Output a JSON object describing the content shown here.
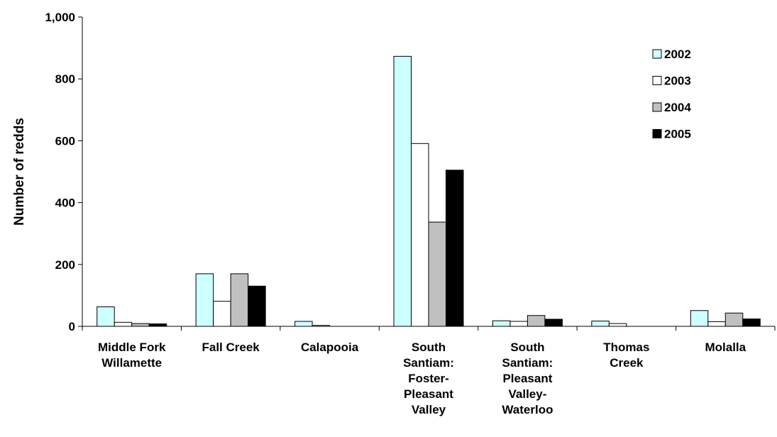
{
  "chart_data": {
    "type": "bar",
    "title": "",
    "xlabel": "",
    "ylabel": "Number of redds",
    "ylim": [
      0,
      1000
    ],
    "yticks": [
      0,
      200,
      400,
      600,
      800,
      1000
    ],
    "ytick_labels": [
      "0",
      "200",
      "400",
      "600",
      "800",
      "1,000"
    ],
    "grid": false,
    "legend_position": "top-right",
    "categories": [
      [
        "Middle Fork",
        "Willamette"
      ],
      [
        "Fall Creek"
      ],
      [
        "Calapooia"
      ],
      [
        "South",
        "Santiam:",
        "Foster-",
        "Pleasant",
        "Valley"
      ],
      [
        "South",
        "Santiam:",
        "Pleasant",
        "Valley-",
        "Waterloo"
      ],
      [
        "Thomas",
        "Creek"
      ],
      [
        "Molalla"
      ]
    ],
    "series": [
      {
        "name": "2002",
        "color": "#ccffff",
        "values": [
          63,
          170,
          16,
          873,
          18,
          17,
          51
        ]
      },
      {
        "name": "2003",
        "color": "#ffffff",
        "values": [
          13,
          81,
          3,
          591,
          16,
          9,
          15
        ]
      },
      {
        "name": "2004",
        "color": "#c0c0c0",
        "values": [
          9,
          170,
          0,
          337,
          35,
          0,
          43
        ]
      },
      {
        "name": "2005",
        "color": "#000000",
        "values": [
          8,
          130,
          0,
          505,
          23,
          0,
          24
        ]
      }
    ]
  }
}
